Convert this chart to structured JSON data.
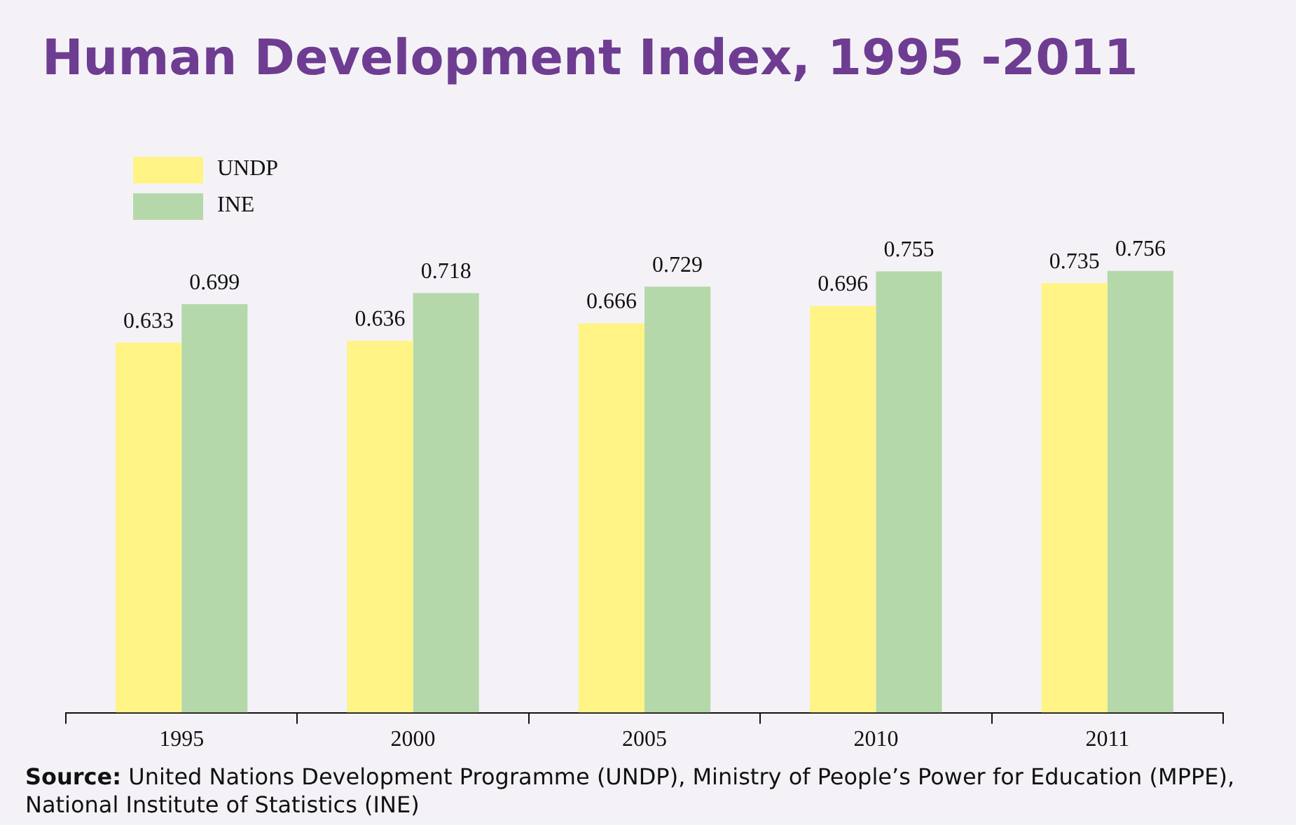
{
  "chart_data": {
    "type": "bar",
    "title": "Human Development Index, 1995 -2011",
    "categories": [
      "1995",
      "2000",
      "2005",
      "2010",
      "2011"
    ],
    "series": [
      {
        "name": "UNDP",
        "color": "#fff485",
        "values": [
          0.633,
          0.636,
          0.666,
          0.696,
          0.735
        ]
      },
      {
        "name": "INE",
        "color": "#b5d8aa",
        "values": [
          0.699,
          0.718,
          0.729,
          0.755,
          0.756
        ]
      }
    ],
    "tick_labels": "x",
    "grid": false,
    "legend": "top left",
    "data_labels": true,
    "annotations": [
      "Source: United Nations Development Programme (UNDP), Ministry of People’s Power for Education (MPPE), National Institute of Statistics (INE)"
    ]
  }
}
